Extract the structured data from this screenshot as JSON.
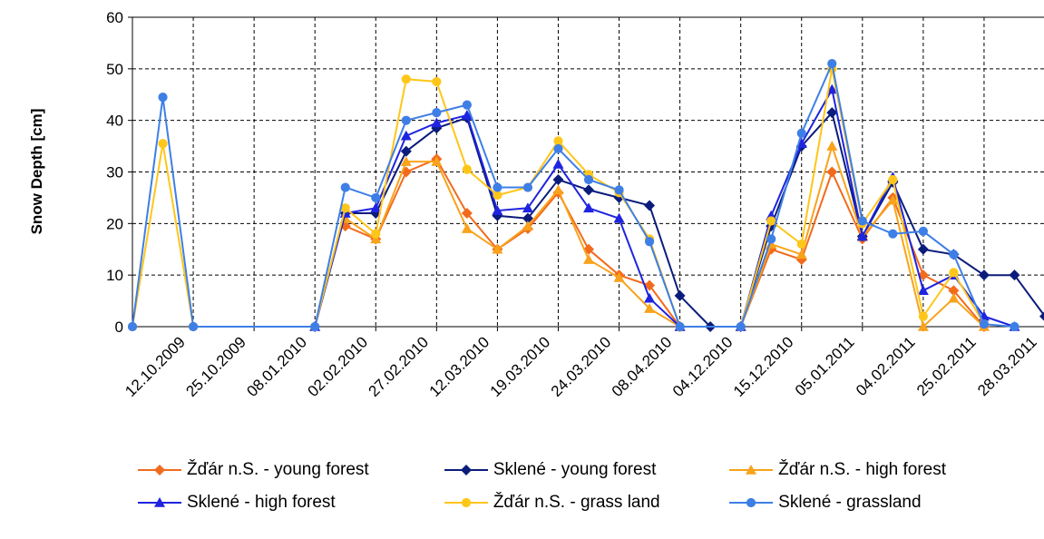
{
  "chart_data": {
    "type": "line",
    "title": "",
    "xlabel": "",
    "ylabel": "Snow Depth [cm]",
    "ylim": [
      0,
      60
    ],
    "yticks": [
      0,
      10,
      20,
      30,
      40,
      50,
      60
    ],
    "grid": true,
    "legend_position": "bottom",
    "x_tick_labels": [
      "12.10.2009",
      "25.10.2009",
      "08.01.2010",
      "02.02.2010",
      "27.02.2010",
      "12.03.2010",
      "19.03.2010",
      "24.03.2010",
      "08.04.2010",
      "04.12.2010",
      "15.12.2010",
      "05.01.2011",
      "04.02.2011",
      "25.02.2011",
      "28.03.2011"
    ],
    "series": [
      {
        "name": "Žďár n.S. - young forest",
        "color": "#F26B1D",
        "marker": "diamond",
        "points": [
          [
            3.5,
            19.5
          ],
          [
            4,
            17
          ],
          [
            4.5,
            30
          ],
          [
            5,
            32.5
          ],
          [
            5.5,
            22
          ],
          [
            6,
            15
          ],
          [
            6.5,
            19
          ],
          [
            7,
            26
          ],
          [
            7.5,
            15
          ],
          [
            8,
            10
          ],
          [
            8.5,
            8
          ],
          [
            9,
            0
          ],
          [
            10,
            0
          ],
          [
            10.5,
            15
          ],
          [
            11,
            13
          ],
          [
            11.5,
            30
          ],
          [
            12,
            17
          ],
          [
            12.5,
            25
          ],
          [
            13,
            10
          ],
          [
            13.5,
            7
          ],
          [
            14,
            0
          ]
        ]
      },
      {
        "name": "Sklené - young forest",
        "color": "#0B1C7A",
        "marker": "diamond",
        "points": [
          [
            3,
            0
          ],
          [
            3.5,
            22
          ],
          [
            4,
            22
          ],
          [
            4.5,
            34
          ],
          [
            5,
            38.5
          ],
          [
            5.5,
            40.5
          ],
          [
            6,
            21.5
          ],
          [
            6.5,
            21
          ],
          [
            7,
            28.5
          ],
          [
            7.5,
            26.5
          ],
          [
            8,
            25
          ],
          [
            8.5,
            23.5
          ],
          [
            9,
            6
          ],
          [
            9.5,
            0
          ],
          [
            10,
            0
          ],
          [
            10.5,
            19.5
          ],
          [
            11,
            35
          ],
          [
            11.5,
            41.5
          ],
          [
            12,
            17.5
          ],
          [
            12.5,
            28
          ],
          [
            13,
            15
          ],
          [
            13.5,
            14
          ],
          [
            14,
            10
          ],
          [
            14.5,
            10
          ],
          [
            15,
            2
          ],
          [
            15.5,
            0
          ]
        ]
      },
      {
        "name": "Žďár n.S. - high forest",
        "color": "#F9A21B",
        "marker": "triangle",
        "points": [
          [
            3.5,
            21
          ],
          [
            4,
            17
          ],
          [
            4.5,
            32
          ],
          [
            5,
            32
          ],
          [
            5.5,
            19
          ],
          [
            6,
            15
          ],
          [
            6.5,
            19.5
          ],
          [
            7,
            26.5
          ],
          [
            7.5,
            13
          ],
          [
            8,
            9.5
          ],
          [
            8.5,
            3.5
          ],
          [
            9,
            0
          ],
          [
            10,
            0
          ],
          [
            10.5,
            16
          ],
          [
            11,
            14
          ],
          [
            11.5,
            35
          ],
          [
            12,
            17.5
          ],
          [
            12.5,
            24.5
          ],
          [
            13,
            0
          ],
          [
            13.5,
            5.5
          ],
          [
            14,
            0
          ]
        ]
      },
      {
        "name": "Sklené - high forest",
        "color": "#1F24E0",
        "marker": "triangle",
        "points": [
          [
            3,
            0
          ],
          [
            3.5,
            22
          ],
          [
            4,
            23
          ],
          [
            4.5,
            37
          ],
          [
            5,
            39.5
          ],
          [
            5.5,
            41
          ],
          [
            6,
            22.5
          ],
          [
            6.5,
            23
          ],
          [
            7,
            31.5
          ],
          [
            7.5,
            23
          ],
          [
            8,
            21
          ],
          [
            8.5,
            5.5
          ],
          [
            9,
            0
          ],
          [
            10,
            0
          ],
          [
            10.5,
            21.5
          ],
          [
            11,
            35.5
          ],
          [
            11.5,
            46
          ],
          [
            12,
            17.5
          ],
          [
            12.5,
            29
          ],
          [
            13,
            7
          ],
          [
            13.5,
            10
          ],
          [
            14,
            2
          ],
          [
            14.5,
            0
          ]
        ]
      },
      {
        "name": "Žďár n.S. - grass land",
        "color": "#FFC61A",
        "marker": "circle",
        "points": [
          [
            0,
            0
          ],
          [
            0.5,
            35.5
          ],
          [
            1,
            0
          ],
          [
            3,
            0
          ],
          [
            3.5,
            23
          ],
          [
            4,
            18
          ],
          [
            4.5,
            48
          ],
          [
            5,
            47.5
          ],
          [
            5.5,
            30.5
          ],
          [
            6,
            25.5
          ],
          [
            6.5,
            27
          ],
          [
            7,
            36
          ],
          [
            7.5,
            29.5
          ],
          [
            8,
            26
          ],
          [
            8.5,
            17
          ],
          [
            9,
            0
          ],
          [
            10,
            0
          ],
          [
            10.5,
            20.5
          ],
          [
            11,
            16
          ],
          [
            11.5,
            50
          ],
          [
            12,
            20
          ],
          [
            12.5,
            28.5
          ],
          [
            13,
            2
          ],
          [
            13.5,
            10.5
          ],
          [
            14,
            0.5
          ]
        ]
      },
      {
        "name": "Sklené - grassland",
        "color": "#3E7FE6",
        "marker": "circle",
        "points": [
          [
            0,
            0
          ],
          [
            0.5,
            44.5
          ],
          [
            1,
            0
          ],
          [
            3,
            0
          ],
          [
            3.5,
            27
          ],
          [
            4,
            25
          ],
          [
            4.5,
            40
          ],
          [
            5,
            41.5
          ],
          [
            5.5,
            43
          ],
          [
            6,
            27
          ],
          [
            6.5,
            27
          ],
          [
            7,
            34.5
          ],
          [
            7.5,
            28.5
          ],
          [
            8,
            26.5
          ],
          [
            8.5,
            16.5
          ],
          [
            9,
            0
          ],
          [
            10,
            0
          ],
          [
            10.5,
            17
          ],
          [
            11,
            37.5
          ],
          [
            11.5,
            51
          ],
          [
            12,
            20.5
          ],
          [
            12.5,
            18
          ],
          [
            13,
            18.5
          ],
          [
            13.5,
            14
          ],
          [
            14,
            0.5
          ],
          [
            14.5,
            0
          ]
        ]
      }
    ]
  }
}
